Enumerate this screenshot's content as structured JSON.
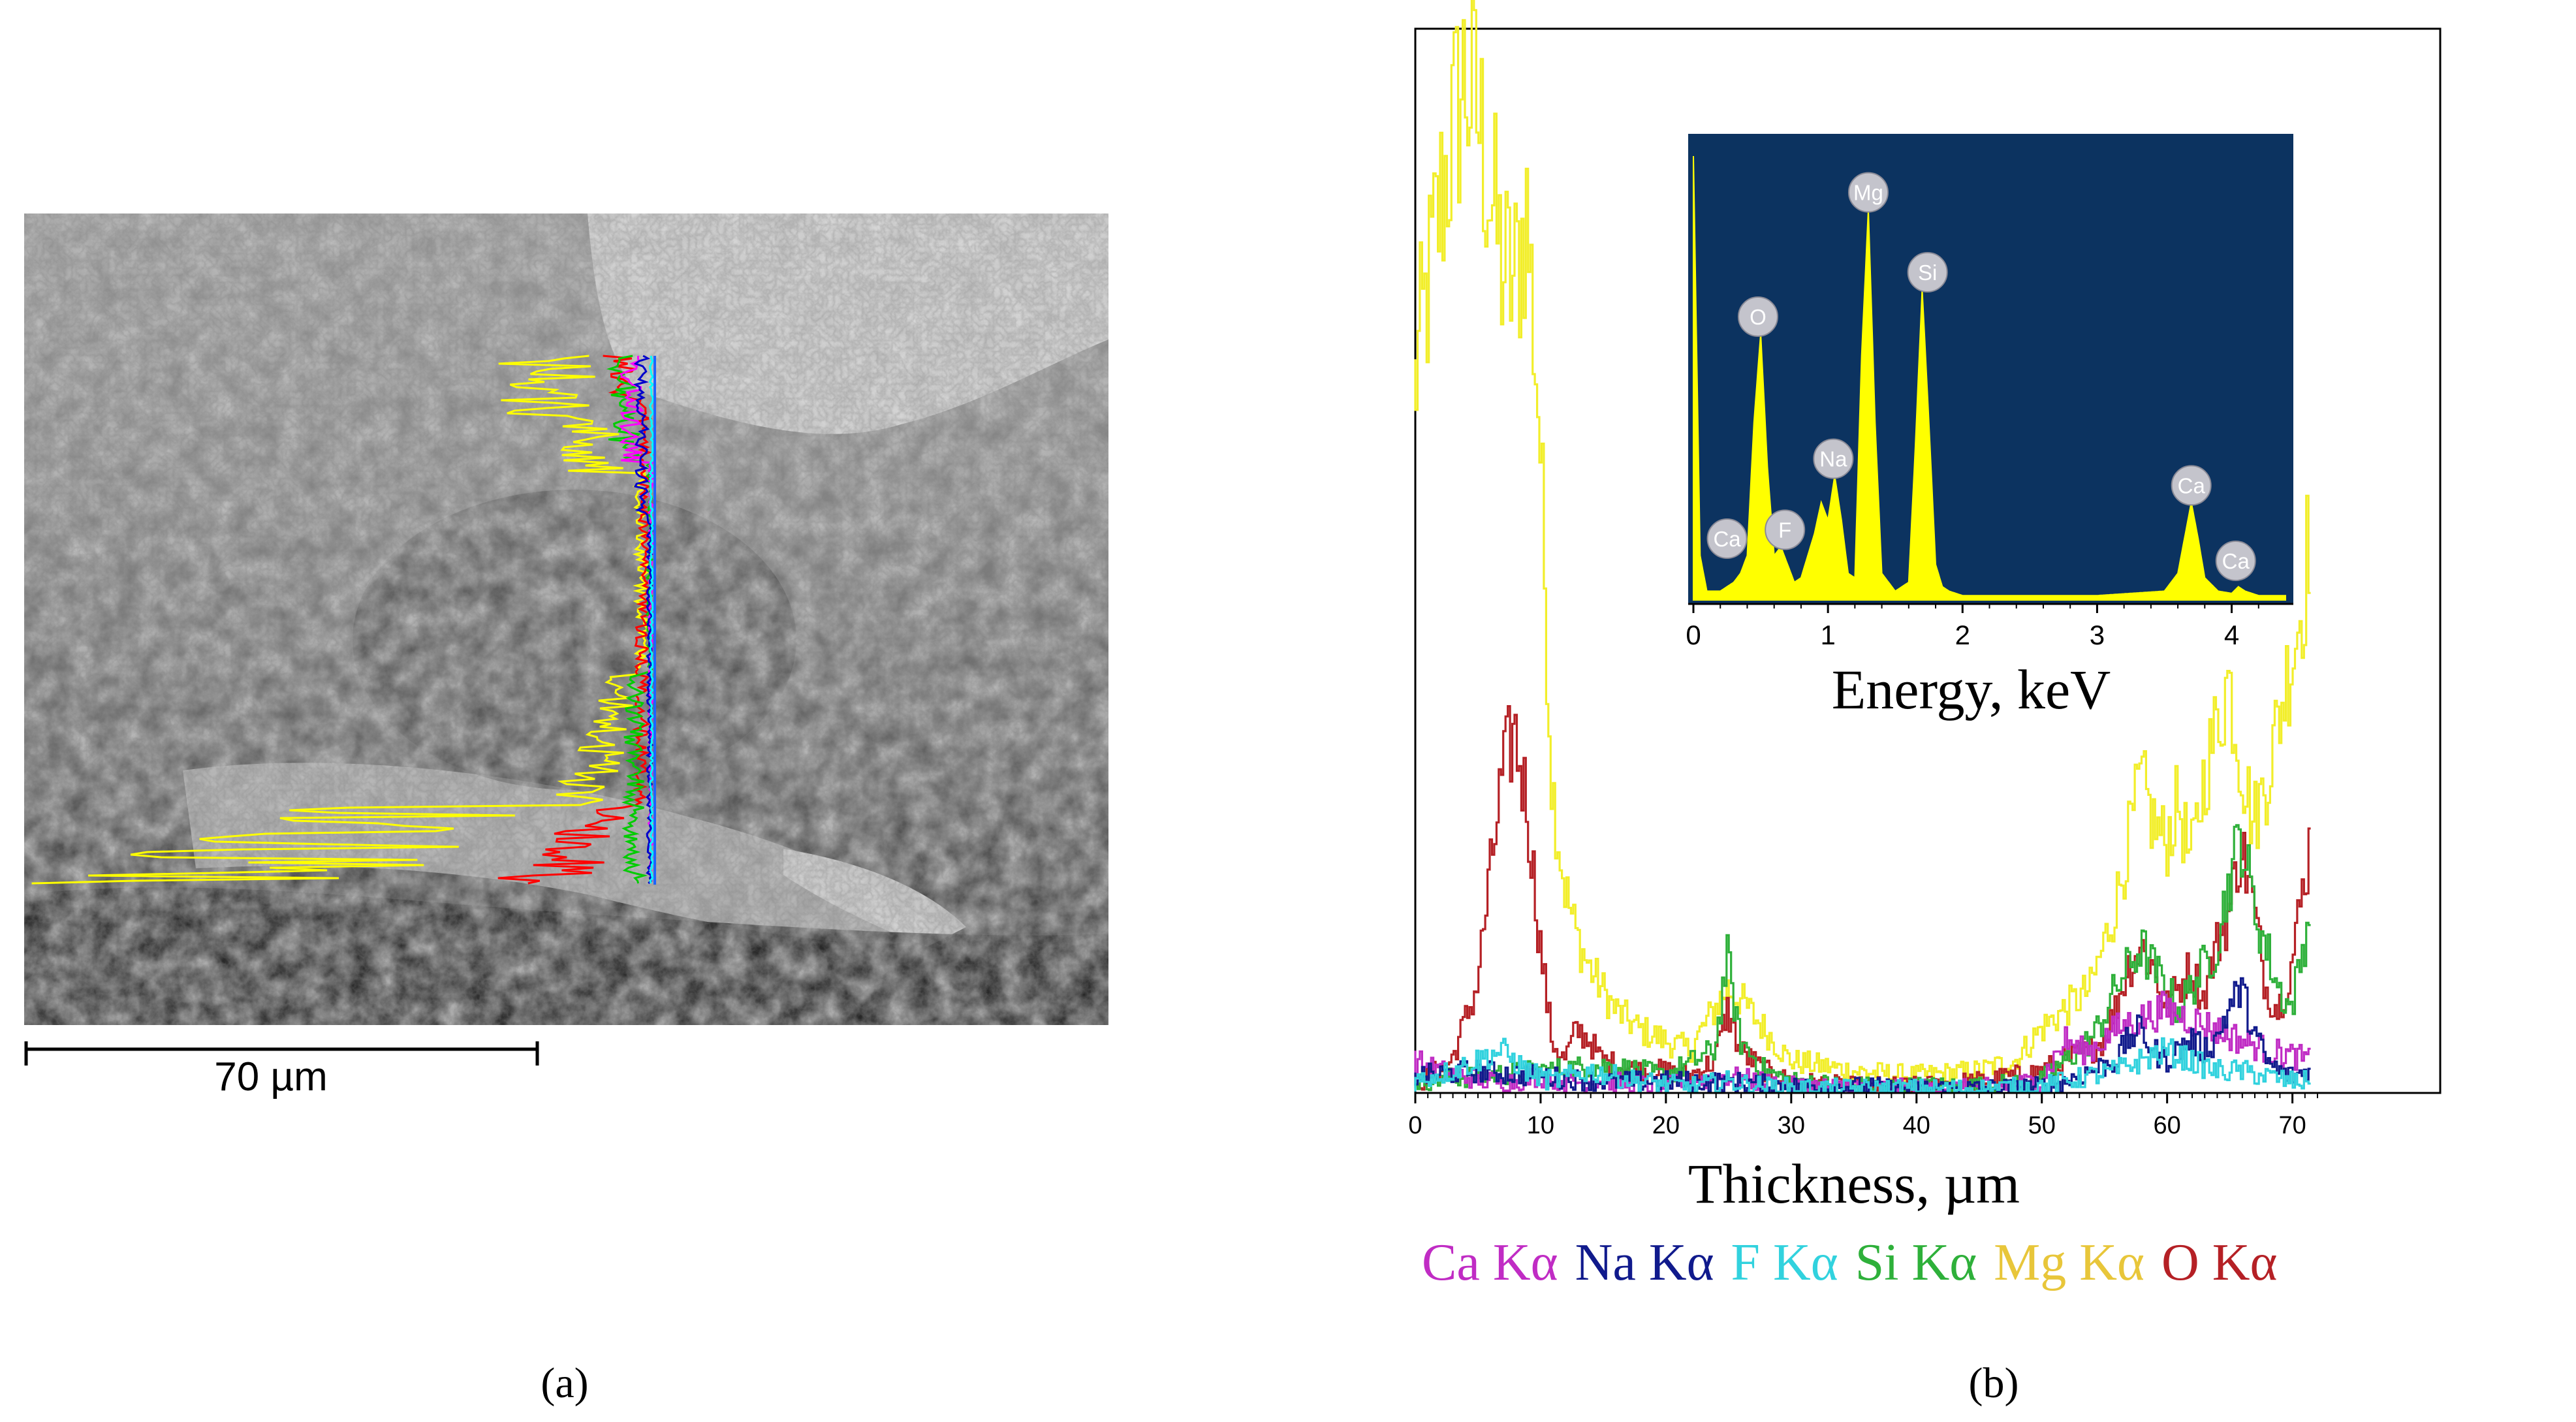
{
  "panel_a": {
    "scale_bar_label": "70 µm",
    "caption": "(a)",
    "profile_colors": [
      "#ffff00",
      "#ff0000",
      "#00cc00",
      "#ff00ff",
      "#0000cc",
      "#00ffff"
    ]
  },
  "panel_b": {
    "caption": "(b)",
    "legend_items": [
      {
        "label": "Ca Kα",
        "color": "#c02cc4"
      },
      {
        "label": "Na Kα",
        "color": "#101a8c"
      },
      {
        "label": "F Kα",
        "color": "#31d2de"
      },
      {
        "label": "Si Kα",
        "color": "#2eb03a"
      },
      {
        "label": "Mg Kα",
        "color": "#e8c63a"
      },
      {
        "label": "O Kα",
        "color": "#b52025"
      }
    ]
  },
  "chart_data": [
    {
      "type": "line",
      "xlabel": "Thickness, µm",
      "ylabel": "",
      "xlim": [
        0,
        72
      ],
      "ylim": [
        0,
        100
      ],
      "x_ticks": [
        0,
        10,
        20,
        30,
        40,
        50,
        60,
        70
      ],
      "y_ticks": [],
      "grid": false,
      "legend_position": "bottom",
      "series": [
        {
          "name": "Mg Kα",
          "color": "#f2ee2a",
          "x": [
            0,
            2,
            3,
            4,
            5,
            6,
            7,
            8,
            9,
            10,
            11,
            12,
            13,
            14,
            16,
            18,
            20,
            22,
            24,
            25,
            26,
            28,
            30,
            35,
            40,
            45,
            48,
            50,
            52,
            54,
            56,
            57,
            58,
            59,
            60,
            61,
            62,
            63,
            64,
            65,
            66,
            67,
            68,
            69,
            70,
            71,
            71.5
          ],
          "values": [
            68,
            85,
            92,
            98,
            95,
            88,
            80,
            78,
            85,
            65,
            30,
            20,
            15,
            12,
            8,
            6,
            5,
            4,
            8,
            10,
            9,
            6,
            3,
            2,
            1.5,
            2,
            3,
            6,
            8,
            10,
            18,
            24,
            30,
            26,
            24,
            28,
            22,
            30,
            35,
            40,
            32,
            26,
            30,
            36,
            42,
            48,
            55
          ]
        },
        {
          "name": "O Kα",
          "color": "#b52025",
          "x": [
            0,
            3,
            5,
            6,
            7,
            8,
            9,
            10,
            11,
            12,
            13,
            14,
            15,
            18,
            20,
            22,
            24,
            25,
            26,
            28,
            30,
            35,
            40,
            45,
            48,
            50,
            52,
            54,
            55,
            56,
            57,
            58,
            59,
            60,
            61,
            62,
            63,
            64,
            65,
            66,
            67,
            68,
            69,
            70,
            71,
            71.5
          ],
          "values": [
            0.5,
            3,
            10,
            20,
            30,
            35,
            28,
            15,
            5,
            3,
            6,
            5,
            3,
            2,
            2,
            1.5,
            3,
            8,
            4,
            2,
            1,
            0.5,
            0.5,
            1,
            1.5,
            2,
            3,
            4,
            5,
            8,
            12,
            14,
            12,
            8,
            10,
            12,
            9,
            14,
            17,
            24,
            18,
            10,
            8,
            12,
            20,
            24
          ]
        },
        {
          "name": "Si Kα",
          "color": "#2eb03a",
          "x": [
            0,
            5,
            10,
            15,
            18,
            20,
            24,
            25,
            26,
            28,
            30,
            35,
            40,
            45,
            50,
            52,
            54,
            55,
            56,
            57,
            58,
            59,
            60,
            61,
            62,
            63,
            64,
            65,
            66,
            67,
            68,
            69,
            70,
            71,
            71.5
          ],
          "values": [
            1,
            1.5,
            2,
            2.5,
            2,
            1.5,
            4,
            13,
            5,
            2,
            1,
            0.5,
            0.5,
            0.5,
            1,
            3,
            5,
            7,
            10,
            12,
            14,
            12,
            10,
            8,
            10,
            12,
            14,
            20,
            25,
            18,
            14,
            10,
            8,
            14,
            18
          ]
        },
        {
          "name": "Ca Kα",
          "color": "#c02cc4",
          "x": [
            0,
            2,
            4,
            6,
            8,
            10,
            12,
            15,
            20,
            25,
            30,
            35,
            40,
            45,
            50,
            51,
            52,
            53,
            54,
            55,
            56,
            58,
            60,
            62,
            64,
            66,
            68,
            70,
            71.5
          ],
          "values": [
            3,
            2,
            1.5,
            1,
            1,
            1.5,
            1,
            1,
            0.5,
            1.5,
            0.5,
            0.5,
            0.3,
            0.3,
            1,
            3,
            5,
            4,
            4,
            5,
            6,
            7,
            8,
            7,
            6,
            5,
            4,
            3.5,
            3
          ]
        },
        {
          "name": "Na Kα",
          "color": "#101a8c",
          "x": [
            0,
            5,
            10,
            15,
            20,
            25,
            30,
            35,
            40,
            45,
            50,
            52,
            54,
            56,
            57,
            58,
            59,
            60,
            61,
            62,
            63,
            64,
            65,
            66,
            67,
            68,
            69,
            70,
            71.5
          ],
          "values": [
            1.5,
            2,
            1.5,
            1,
            1,
            1,
            0.5,
            0.5,
            0.3,
            0.3,
            0.5,
            1,
            2,
            3,
            5,
            6,
            4,
            3,
            4,
            5,
            4,
            5,
            8,
            10,
            6,
            3,
            2,
            1.5,
            2
          ]
        },
        {
          "name": "F Kα",
          "color": "#31d2de",
          "x": [
            0,
            3,
            5,
            7,
            9,
            11,
            14,
            18,
            22,
            25,
            28,
            32,
            36,
            40,
            45,
            50,
            52,
            54,
            56,
            58,
            60,
            62,
            64,
            66,
            68,
            70,
            71.5
          ],
          "values": [
            1,
            2,
            3,
            4,
            2,
            1,
            2,
            1,
            0.5,
            1,
            0.5,
            0.3,
            0.3,
            0.3,
            0.3,
            0.5,
            1,
            1.5,
            2,
            3,
            4,
            3,
            2,
            2,
            1.5,
            1,
            1
          ]
        }
      ]
    },
    {
      "type": "line",
      "xlabel": "Energy, keV",
      "ylabel": "",
      "xlim": [
        0,
        4.4
      ],
      "ylim": [
        0,
        100
      ],
      "x_ticks": [
        0,
        1,
        2,
        3,
        4
      ],
      "grid": false,
      "background": "#0c3360",
      "fill": "#ffff00",
      "series": [
        {
          "name": "",
          "x": [
            0.0,
            0.05,
            0.1,
            0.2,
            0.3,
            0.35,
            0.4,
            0.45,
            0.5,
            0.55,
            0.6,
            0.65,
            0.7,
            0.75,
            0.8,
            0.9,
            0.95,
            1.0,
            1.05,
            1.1,
            1.15,
            1.2,
            1.25,
            1.3,
            1.35,
            1.4,
            1.5,
            1.6,
            1.65,
            1.7,
            1.75,
            1.8,
            1.85,
            1.9,
            2.0,
            2.5,
            3.0,
            3.5,
            3.6,
            3.65,
            3.7,
            3.75,
            3.8,
            3.9,
            4.0,
            4.05,
            4.1,
            4.2,
            4.4
          ],
          "values": [
            100,
            10,
            2,
            2,
            4,
            6,
            10,
            40,
            60,
            30,
            10,
            12,
            8,
            4,
            5,
            15,
            22,
            18,
            28,
            18,
            6,
            5,
            55,
            88,
            40,
            6,
            2,
            4,
            35,
            70,
            40,
            8,
            3,
            2,
            1,
            1,
            1,
            2,
            6,
            14,
            22,
            14,
            5,
            2,
            1.5,
            3,
            2,
            1,
            1
          ]
        }
      ],
      "annotations": [
        {
          "text": "O",
          "x": 0.48,
          "y": 60
        },
        {
          "text": "Mg",
          "x": 1.3,
          "y": 88
        },
        {
          "text": "Si",
          "x": 1.74,
          "y": 70
        },
        {
          "text": "Na",
          "x": 1.04,
          "y": 28
        },
        {
          "text": "F",
          "x": 0.68,
          "y": 12
        },
        {
          "text": "Ca",
          "x": 0.25,
          "y": 10
        },
        {
          "text": "Ca",
          "x": 3.7,
          "y": 22
        },
        {
          "text": "Ca",
          "x": 4.03,
          "y": 5
        }
      ]
    }
  ]
}
